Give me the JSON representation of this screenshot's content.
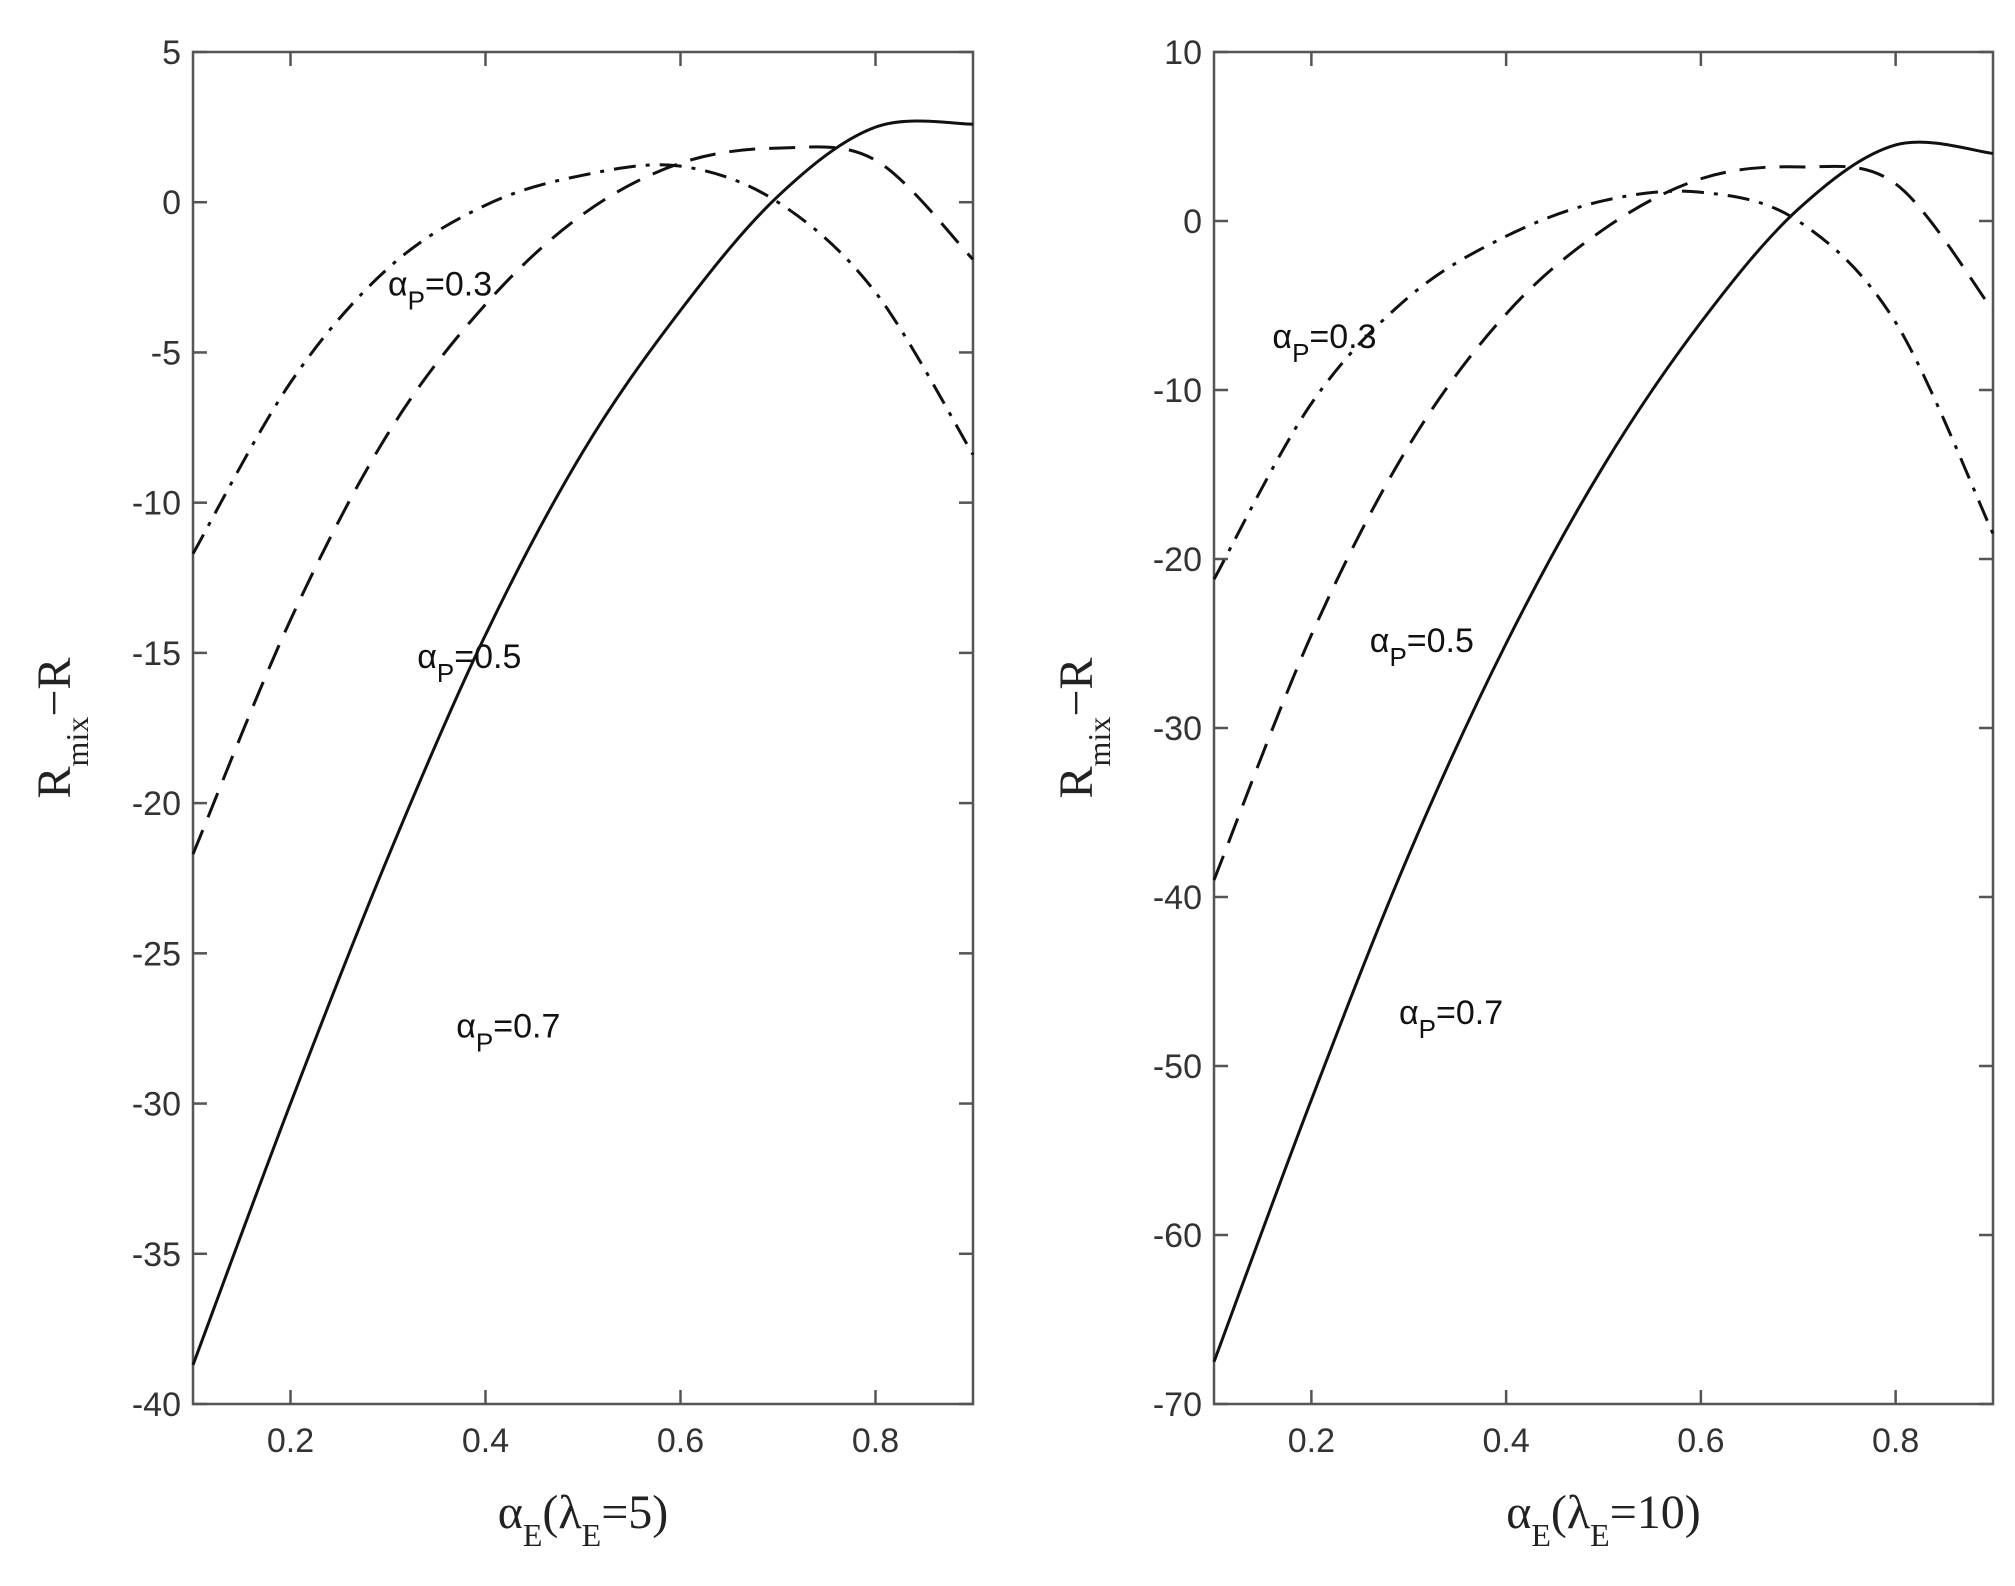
{
  "chart_data": [
    {
      "type": "line",
      "xlabel": {
        "base": "α",
        "sub": "E",
        "open": "(",
        "lambda": "λ",
        "lambda_sub": "E",
        "value": "=5)"
      },
      "ylabel": {
        "base": "R",
        "sub": "mix",
        "rest": "−R"
      },
      "xlim": [
        0.1,
        0.9
      ],
      "ylim": [
        -40,
        5
      ],
      "xticks": [
        0.2,
        0.4,
        0.6,
        0.8
      ],
      "xtick_labels": [
        "0.2",
        "0.4",
        "0.6",
        "0.8"
      ],
      "yticks": [
        5,
        0,
        -5,
        -10,
        -15,
        -20,
        -25,
        -30,
        -35,
        -40
      ],
      "ytick_labels": [
        "5",
        "0",
        "-5",
        "-10",
        "-15",
        "-20",
        "-25",
        "-30",
        "-35",
        "-40"
      ],
      "series": [
        {
          "label_base": "α",
          "label_sub": "P",
          "label_value": "=0.3",
          "style": "dashdot",
          "x": [
            0.1,
            0.2,
            0.3,
            0.4,
            0.5,
            0.6,
            0.7,
            0.8,
            0.9
          ],
          "y": [
            -11.7,
            -6.0,
            -2.2,
            -0.1,
            0.9,
            1.2,
            0.0,
            -3.0,
            -8.4
          ],
          "label_at": [
            0.3,
            -3.1
          ]
        },
        {
          "label_base": "α",
          "label_sub": "P",
          "label_value": "=0.5",
          "style": "dashed",
          "x": [
            0.1,
            0.2,
            0.3,
            0.4,
            0.5,
            0.6,
            0.7,
            0.8,
            0.9
          ],
          "y": [
            -21.7,
            -13.9,
            -7.7,
            -3.4,
            -0.4,
            1.3,
            1.8,
            1.4,
            -1.9
          ],
          "label_at": [
            0.33,
            -15.5
          ]
        },
        {
          "label_base": "α",
          "label_sub": "P",
          "label_value": "=0.7",
          "style": "solid",
          "x": [
            0.1,
            0.2,
            0.3,
            0.4,
            0.5,
            0.6,
            0.7,
            0.8,
            0.9
          ],
          "y": [
            -38.7,
            -30.0,
            -21.8,
            -14.4,
            -8.3,
            -3.6,
            0.2,
            2.5,
            2.6
          ],
          "label_at": [
            0.37,
            -27.8
          ]
        }
      ]
    },
    {
      "type": "line",
      "xlabel": {
        "base": "α",
        "sub": "E",
        "open": "(",
        "lambda": "λ",
        "lambda_sub": "E",
        "value": "=10)"
      },
      "ylabel": {
        "base": "R",
        "sub": "mix",
        "rest": "−R"
      },
      "xlim": [
        0.1,
        0.9
      ],
      "ylim": [
        -70,
        10
      ],
      "xticks": [
        0.2,
        0.4,
        0.6,
        0.8
      ],
      "xtick_labels": [
        "0.2",
        "0.4",
        "0.6",
        "0.8"
      ],
      "yticks": [
        10,
        0,
        -10,
        -20,
        -30,
        -40,
        -50,
        -60,
        -70
      ],
      "ytick_labels": [
        "10",
        "0",
        "-10",
        "-20",
        "-30",
        "-40",
        "-50",
        "-60",
        "-70"
      ],
      "series": [
        {
          "label_base": "α",
          "label_sub": "P",
          "label_value": "=0.3",
          "style": "dashdot",
          "x": [
            0.1,
            0.2,
            0.3,
            0.4,
            0.5,
            0.6,
            0.7,
            0.8,
            0.9
          ],
          "y": [
            -21.2,
            -10.8,
            -4.5,
            -0.9,
            1.2,
            1.7,
            0.0,
            -6.0,
            -18.5
          ],
          "label_at": [
            0.16,
            -7.5
          ]
        },
        {
          "label_base": "α",
          "label_sub": "P",
          "label_value": "=0.5",
          "style": "dashed",
          "x": [
            0.1,
            0.2,
            0.3,
            0.4,
            0.5,
            0.6,
            0.7,
            0.8,
            0.9
          ],
          "y": [
            -39.0,
            -24.5,
            -13.3,
            -5.5,
            -0.5,
            2.5,
            3.2,
            2.2,
            -5.3
          ],
          "label_at": [
            0.26,
            -25.5
          ]
        },
        {
          "label_base": "α",
          "label_sub": "P",
          "label_value": "=0.7",
          "style": "solid",
          "x": [
            0.1,
            0.2,
            0.3,
            0.4,
            0.5,
            0.6,
            0.7,
            0.8,
            0.9
          ],
          "y": [
            -67.5,
            -52.0,
            -37.5,
            -25.0,
            -14.5,
            -6.0,
            0.7,
            4.5,
            4.0
          ],
          "label_at": [
            0.29,
            -47.5
          ]
        }
      ]
    }
  ]
}
